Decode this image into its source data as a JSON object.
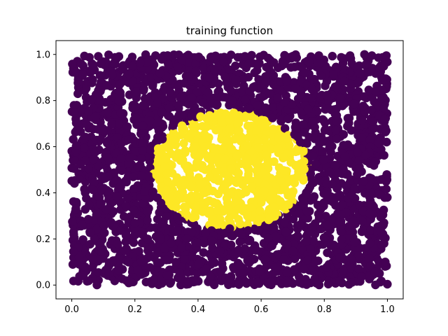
{
  "chart_data": {
    "type": "scatter",
    "title": "training function",
    "xlabel": "",
    "ylabel": "",
    "xlim": [
      -0.05,
      1.05
    ],
    "ylim": [
      -0.06,
      1.06
    ],
    "x_ticks": [
      "0.0",
      "0.2",
      "0.4",
      "0.6",
      "0.8",
      "1.0"
    ],
    "y_ticks": [
      "0.0",
      "0.2",
      "0.4",
      "0.6",
      "0.8",
      "1.0"
    ],
    "grid": false,
    "legend": "none",
    "colors": {
      "outside": "#440154",
      "inside": "#fde725",
      "background": "#ffffff"
    },
    "series": [
      {
        "class_value": 0,
        "color": "#440154",
        "region": "points in the unit square [0,1]x[0,1] lying outside the ellipse"
      },
      {
        "class_value": 1,
        "color": "#fde725",
        "region": "points inside the ellipse centred at (0.5, 0.5) with x-radius 0.25 and y-radius 0.25"
      }
    ],
    "ellipse": {
      "cx": 0.5,
      "cy": 0.5,
      "rx": 0.25,
      "ry": 0.25
    }
  }
}
